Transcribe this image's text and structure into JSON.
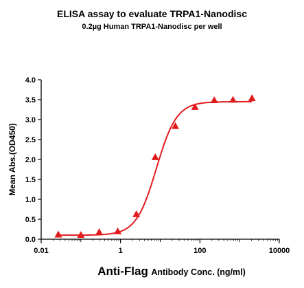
{
  "chart_data": {
    "type": "scatter",
    "title": "ELISA assay to evaluate TRPA1-Nanodisc",
    "subtitle": "0.2µg Human TRPA1-Nanodisc per well",
    "xlabel_main": "Anti-Flag",
    "xlabel_rest": "Antibody Conc. (ng/ml)",
    "ylabel": "Mean Abs.(OD450)",
    "x_scale": "log",
    "xlim": [
      0.01,
      10000
    ],
    "ylim": [
      0.0,
      4.0
    ],
    "x_ticks": [
      "0.01",
      "1",
      "100",
      "10000"
    ],
    "y_ticks": [
      "0.0",
      "0.5",
      "1.0",
      "1.5",
      "2.0",
      "2.5",
      "3.0",
      "3.5",
      "4.0"
    ],
    "grid": false,
    "color": "#e31a1c",
    "marker": "triangle",
    "points": [
      {
        "x": 0.027,
        "y": 0.12
      },
      {
        "x": 0.1,
        "y": 0.11
      },
      {
        "x": 0.29,
        "y": 0.18
      },
      {
        "x": 0.85,
        "y": 0.2
      },
      {
        "x": 2.5,
        "y": 0.63
      },
      {
        "x": 7.5,
        "y": 2.06
      },
      {
        "x": 24,
        "y": 2.84
      },
      {
        "x": 75,
        "y": 3.32
      },
      {
        "x": 230,
        "y": 3.49
      },
      {
        "x": 680,
        "y": 3.5
      },
      {
        "x": 2050,
        "y": 3.54
      }
    ],
    "fit_curve": {
      "bottom": 0.1,
      "top": 3.45,
      "ec50": 8.0,
      "hill": 1.7
    }
  }
}
